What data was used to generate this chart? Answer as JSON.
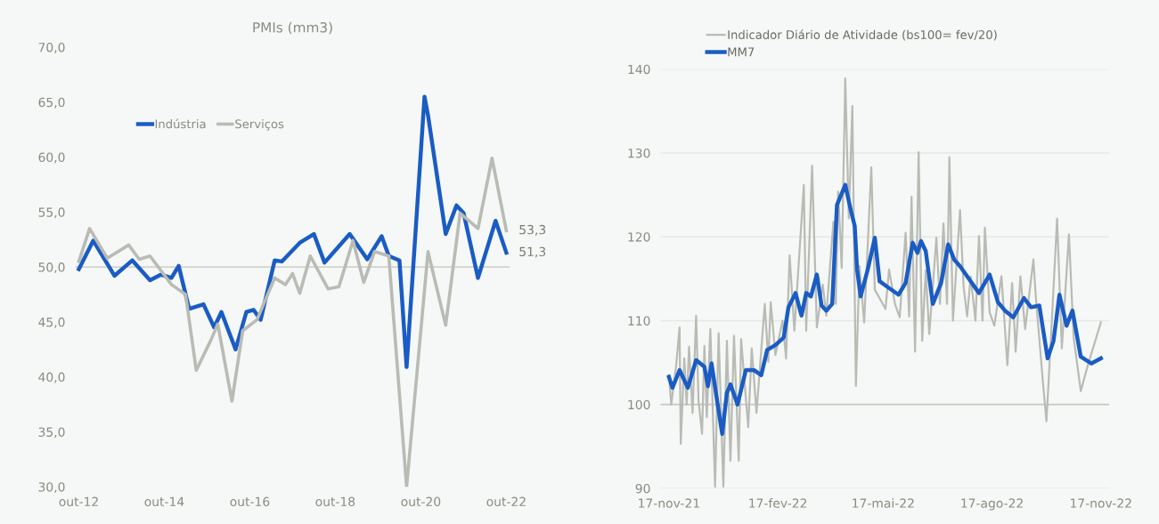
{
  "chart_data": [
    {
      "type": "line",
      "title": "PMIs (mm3)",
      "legend": "top left",
      "grid": false,
      "xlim": [
        "2012-09",
        "2022-11"
      ],
      "xticks": [
        {
          "value": "2012-10",
          "label": "out-12"
        },
        {
          "value": "2014-10",
          "label": "out-14"
        },
        {
          "value": "2016-10",
          "label": "out-16"
        },
        {
          "value": "2018-10",
          "label": "out-18"
        },
        {
          "value": "2020-10",
          "label": "out-20"
        },
        {
          "value": "2022-10",
          "label": "out-22"
        }
      ],
      "ylim": [
        30,
        70
      ],
      "yticks": [
        {
          "value": 30,
          "label": "30,0"
        },
        {
          "value": 35,
          "label": "35,0"
        },
        {
          "value": 40,
          "label": "40,0"
        },
        {
          "value": 45,
          "label": "45,0"
        },
        {
          "value": 50,
          "label": "50,0"
        },
        {
          "value": 55,
          "label": "55,0"
        },
        {
          "value": 60,
          "label": "60,0"
        },
        {
          "value": 65,
          "label": "65,0"
        },
        {
          "value": 70,
          "label": "70,0"
        }
      ],
      "ref_lines": [
        {
          "axis": "y",
          "value": 50,
          "color": "#d2d3cc"
        }
      ],
      "annotations": [
        {
          "text": "53,3",
          "x": "2022-10",
          "y": 53.3
        },
        {
          "text": "51,3",
          "x": "2022-10",
          "y": 51.3
        }
      ],
      "series": [
        {
          "name": "Indústria",
          "color": "#1a5cc4",
          "x": [
            "2012-10",
            "2013-02",
            "2013-08",
            "2014-01",
            "2014-06",
            "2014-09",
            "2014-12",
            "2015-02",
            "2015-05",
            "2015-09",
            "2015-12",
            "2016-02",
            "2016-06",
            "2016-09",
            "2016-11",
            "2017-01",
            "2017-05",
            "2017-07",
            "2017-12",
            "2018-04",
            "2018-07",
            "2019-02",
            "2019-07",
            "2019-11",
            "2020-01",
            "2020-04",
            "2020-06",
            "2020-11",
            "2020-12",
            "2021-05",
            "2021-08",
            "2021-10",
            "2022-02",
            "2022-07",
            "2022-10"
          ],
          "values": [
            49.8,
            52.4,
            49.2,
            50.6,
            48.8,
            49.3,
            49.0,
            50.1,
            46.2,
            46.6,
            44.5,
            45.9,
            42.5,
            45.9,
            46.1,
            45.2,
            50.6,
            50.5,
            52.2,
            53.0,
            50.4,
            53.0,
            50.7,
            52.8,
            51.0,
            50.6,
            40.9,
            65.5,
            63.8,
            53.0,
            55.6,
            54.9,
            49.0,
            54.2,
            51.3
          ]
        },
        {
          "name": "Serviços",
          "color": "#b9bbb4",
          "x": [
            "2012-10",
            "2013-01",
            "2013-06",
            "2013-12",
            "2014-03",
            "2014-06",
            "2014-12",
            "2015-04",
            "2015-07",
            "2015-11",
            "2016-01",
            "2016-05",
            "2016-08",
            "2016-12",
            "2017-05",
            "2017-08",
            "2017-10",
            "2017-12",
            "2018-03",
            "2018-08",
            "2018-11",
            "2019-03",
            "2019-06",
            "2019-09",
            "2020-01",
            "2020-06",
            "2020-12",
            "2021-05",
            "2021-09",
            "2022-02",
            "2022-06",
            "2022-10"
          ],
          "values": [
            50.5,
            53.5,
            50.8,
            52.0,
            50.7,
            51.0,
            48.4,
            47.5,
            40.6,
            43.3,
            44.8,
            37.8,
            44.2,
            45.2,
            49.0,
            48.4,
            49.4,
            47.6,
            51.0,
            48.0,
            48.2,
            52.4,
            48.6,
            51.4,
            51.0,
            30.0,
            51.4,
            44.7,
            54.9,
            53.5,
            59.9,
            53.3
          ]
        }
      ]
    },
    {
      "type": "line",
      "legend": "top left",
      "grid": "y",
      "xlim": [
        "2021-11-10",
        "2022-11-24"
      ],
      "xticks": [
        {
          "value": "2021-11-17",
          "label": "17-nov-21"
        },
        {
          "value": "2022-02-17",
          "label": "17-fev-22"
        },
        {
          "value": "2022-05-17",
          "label": "17-mai-22"
        },
        {
          "value": "2022-08-17",
          "label": "17-ago-22"
        },
        {
          "value": "2022-11-17",
          "label": "17-nov-22"
        }
      ],
      "ylim": [
        90,
        140
      ],
      "yticks": [
        90,
        100,
        110,
        120,
        130,
        140
      ],
      "ref_lines": [
        {
          "axis": "y",
          "value": 100,
          "color": "#c8c9c2"
        }
      ],
      "series": [
        {
          "name": "Indicador Diário de Atividade (bs100= fev/20)",
          "color": "#b9bbb4",
          "x": [
            "2021-11-17",
            "2021-11-19",
            "2021-11-23",
            "2021-11-26",
            "2021-11-27",
            "2021-11-30",
            "2021-12-02",
            "2021-12-04",
            "2021-12-07",
            "2021-12-10",
            "2021-12-12",
            "2021-12-15",
            "2021-12-17",
            "2021-12-19",
            "2021-12-22",
            "2021-12-26",
            "2021-12-29",
            "2022-01-02",
            "2022-01-05",
            "2022-01-08",
            "2022-01-11",
            "2022-01-15",
            "2022-01-17",
            "2022-01-23",
            "2022-01-26",
            "2022-01-30",
            "2022-02-06",
            "2022-02-09",
            "2022-02-11",
            "2022-02-15",
            "2022-02-21",
            "2022-02-24",
            "2022-02-27",
            "2022-03-03",
            "2022-03-11",
            "2022-03-13",
            "2022-03-18",
            "2022-03-22",
            "2022-03-27",
            "2022-03-30",
            "2022-04-05",
            "2022-04-07",
            "2022-04-09",
            "2022-04-12",
            "2022-04-15",
            "2022-04-18",
            "2022-04-21",
            "2022-04-24",
            "2022-04-27",
            "2022-05-01",
            "2022-05-07",
            "2022-05-10",
            "2022-05-19",
            "2022-05-22",
            "2022-05-27",
            "2022-05-31",
            "2022-06-05",
            "2022-06-08",
            "2022-06-10",
            "2022-06-13",
            "2022-06-16",
            "2022-06-19",
            "2022-06-22",
            "2022-06-25",
            "2022-07-01",
            "2022-07-04",
            "2022-07-07",
            "2022-07-10",
            "2022-07-12",
            "2022-07-15",
            "2022-07-21",
            "2022-07-24",
            "2022-07-27",
            "2022-07-30",
            "2022-08-03",
            "2022-08-06",
            "2022-08-09",
            "2022-08-11",
            "2022-08-15",
            "2022-08-19",
            "2022-08-25",
            "2022-08-30",
            "2022-09-03",
            "2022-09-06",
            "2022-09-10",
            "2022-09-14",
            "2022-09-21",
            "2022-09-23",
            "2022-09-29",
            "2022-10-02",
            "2022-10-06",
            "2022-10-11",
            "2022-10-15",
            "2022-10-21",
            "2022-10-25",
            "2022-10-31",
            "2022-11-06",
            "2022-11-17"
          ],
          "values": [
            103.5,
            100,
            104.5,
            109.2,
            95.3,
            105.5,
            100,
            106.9,
            99,
            110.6,
            100.5,
            96.5,
            107,
            98.5,
            109,
            90.2,
            108.5,
            90.2,
            107.6,
            93.3,
            108.2,
            93.3,
            107.8,
            97.3,
            106.7,
            99.0,
            112.0,
            105.1,
            112.2,
            105.9,
            110.0,
            105.5,
            117.8,
            108.8,
            126.2,
            108.8,
            128.5,
            109.2,
            114.3,
            110.6,
            121.8,
            112,
            125.4,
            116.3,
            138.9,
            122.2,
            135.6,
            102.2,
            116.5,
            109.8,
            128.3,
            113.7,
            111.4,
            116.1,
            112.0,
            110.4,
            120.5,
            110.5,
            124.8,
            106.3,
            130.1,
            107.6,
            116,
            108.4,
            119.9,
            112,
            121.6,
            112,
            129.5,
            110.0,
            123.2,
            114.1,
            110.5,
            115.3,
            110,
            120.1,
            110.0,
            121.1,
            111,
            109.4,
            115.3,
            104.7,
            114.5,
            106.3,
            115.3,
            109.0,
            117.3,
            112.9,
            102.7,
            98.0,
            108.4,
            122.2,
            106.7,
            120.3,
            108.0,
            101.6,
            104.7,
            109.8
          ]
        },
        {
          "name": "MM7",
          "color": "#1a5cc4",
          "x": [
            "2021-11-17",
            "2021-11-20",
            "2021-11-26",
            "2021-12-03",
            "2021-12-10",
            "2021-12-17",
            "2021-12-20",
            "2021-12-23",
            "2021-12-28",
            "2022-01-01",
            "2022-01-05",
            "2022-01-08",
            "2022-01-14",
            "2022-01-21",
            "2022-01-28",
            "2022-02-03",
            "2022-02-08",
            "2022-02-15",
            "2022-02-22",
            "2022-02-26",
            "2022-03-04",
            "2022-03-09",
            "2022-03-13",
            "2022-03-17",
            "2022-03-22",
            "2022-03-26",
            "2022-03-30",
            "2022-04-04",
            "2022-04-08",
            "2022-04-15",
            "2022-04-20",
            "2022-04-23",
            "2022-04-25",
            "2022-04-28",
            "2022-05-04",
            "2022-05-10",
            "2022-05-14",
            "2022-05-22",
            "2022-05-30",
            "2022-06-05",
            "2022-06-11",
            "2022-06-15",
            "2022-06-18",
            "2022-06-22",
            "2022-06-28",
            "2022-07-05",
            "2022-07-11",
            "2022-07-16",
            "2022-07-21",
            "2022-07-30",
            "2022-08-06",
            "2022-08-15",
            "2022-08-22",
            "2022-08-28",
            "2022-09-04",
            "2022-09-13",
            "2022-09-19",
            "2022-09-26",
            "2022-10-03",
            "2022-10-08",
            "2022-10-13",
            "2022-10-19",
            "2022-10-24",
            "2022-10-31",
            "2022-11-09",
            "2022-11-17"
          ],
          "values": [
            103.3,
            102.0,
            104.1,
            102.0,
            105.3,
            104.5,
            102.2,
            104.9,
            100.2,
            96.5,
            101.4,
            102.4,
            100.0,
            104.1,
            104.1,
            103.5,
            106.5,
            107.1,
            108.0,
            111.6,
            113.3,
            110.6,
            113.3,
            112.9,
            115.5,
            111.8,
            111.2,
            112.0,
            123.8,
            126.2,
            123.0,
            121.3,
            116.1,
            112.9,
            116.1,
            119.9,
            114.7,
            113.9,
            113.1,
            114.5,
            119.3,
            118.1,
            119.5,
            118.3,
            112.0,
            114.5,
            119.1,
            117.3,
            116.5,
            114.7,
            113.3,
            115.5,
            112.2,
            111.2,
            110.4,
            112.7,
            111.6,
            111.8,
            105.5,
            107.6,
            113.1,
            109.4,
            111.2,
            105.7,
            104.9,
            105.5
          ]
        }
      ]
    }
  ]
}
